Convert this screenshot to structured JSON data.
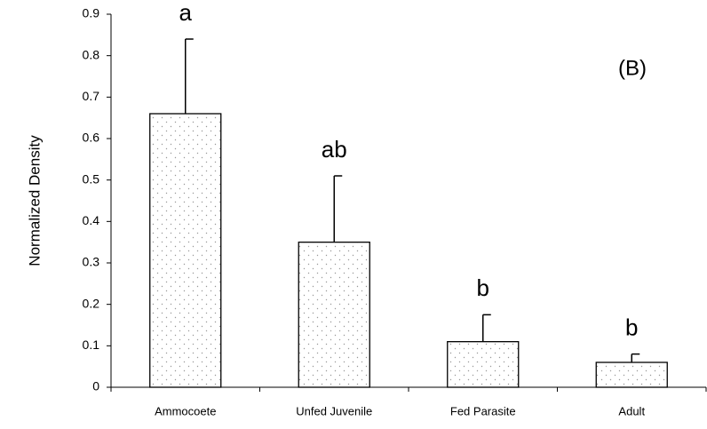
{
  "chart_data": {
    "type": "bar",
    "ylabel": "Normalized Density",
    "panel_label": "(B)",
    "categories": [
      "Ammocoete",
      "Unfed Juvenile",
      "Fed Parasite",
      "Adult"
    ],
    "values": [
      0.66,
      0.35,
      0.11,
      0.06
    ],
    "errors": [
      0.18,
      0.16,
      0.065,
      0.02
    ],
    "group_labels": [
      "a",
      "ab",
      "b",
      "b"
    ],
    "ylim": [
      0,
      0.9
    ],
    "yticks": [
      0,
      0.1,
      0.2,
      0.3,
      0.4,
      0.5,
      0.6,
      0.7,
      0.8,
      0.9
    ],
    "grid": false
  }
}
